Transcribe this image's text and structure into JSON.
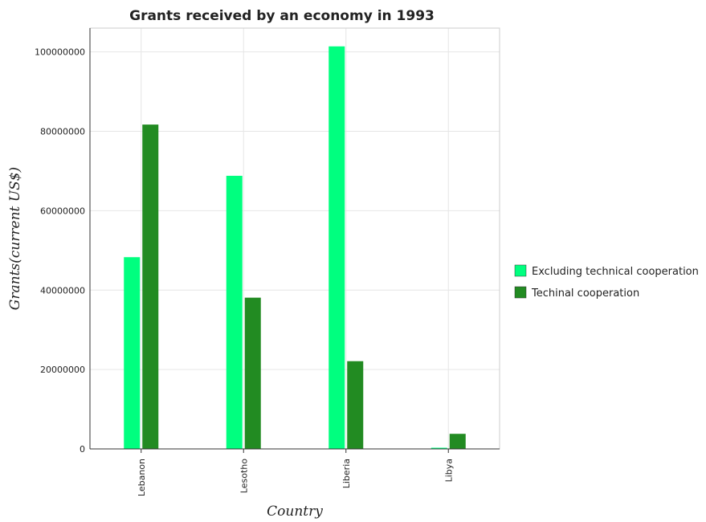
{
  "chart_data": {
    "type": "bar",
    "title": "Grants received by an economy in 1993",
    "xlabel": "Country",
    "ylabel": "Grants(current US$)",
    "categories": [
      "Lebanon",
      "Lesotho",
      "Liberia",
      "Libya"
    ],
    "series": [
      {
        "name": "Excluding technical cooperation",
        "color": "#00ff7f",
        "values": [
          48300000,
          68800000,
          101400000,
          300000
        ]
      },
      {
        "name": "Techinal cooperation",
        "color": "#228b22",
        "values": [
          81700000,
          38100000,
          22100000,
          3800000
        ]
      }
    ],
    "ylim": [
      0,
      106000000
    ],
    "yticks": [
      0,
      20000000,
      40000000,
      60000000,
      80000000,
      100000000
    ],
    "ytick_labels": [
      "0",
      "20000000",
      "40000000",
      "60000000",
      "80000000",
      "100000000"
    ],
    "grid": true,
    "legend_position": "right"
  }
}
